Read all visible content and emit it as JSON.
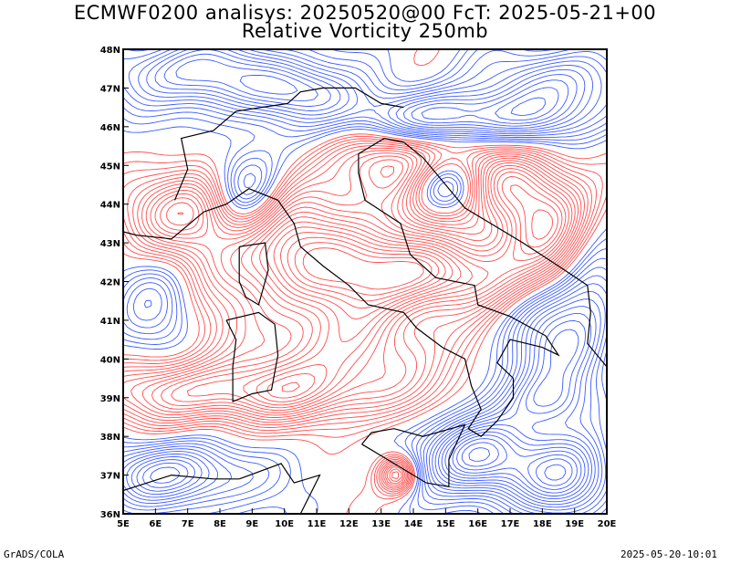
{
  "header": {
    "line1": "ECMWF0200 analisys: 20250520@00 FcT: 2025-05-21+00",
    "line2": "Relative Vorticity 250mb"
  },
  "map": {
    "lon_range": [
      5,
      20
    ],
    "lat_range": [
      36,
      48
    ],
    "lon_ticks": [
      "5E",
      "6E",
      "7E",
      "8E",
      "9E",
      "10E",
      "11E",
      "12E",
      "13E",
      "14E",
      "15E",
      "16E",
      "17E",
      "18E",
      "19E",
      "20E"
    ],
    "lat_ticks": [
      "36N",
      "37N",
      "38N",
      "39N",
      "40N",
      "41N",
      "42N",
      "43N",
      "44N",
      "45N",
      "46N",
      "47N",
      "48N"
    ],
    "colors": {
      "positive": "#ff4c4c",
      "negative": "#3c5cff",
      "coast": "#000000",
      "grid": "#999999"
    }
  },
  "footer": {
    "left": "GrADS/COLA",
    "right": "2025-05-20-10:01"
  }
}
